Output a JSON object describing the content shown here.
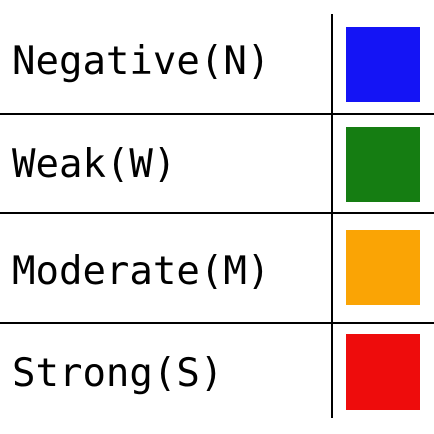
{
  "legend": {
    "items": [
      {
        "label": "Negative(N)",
        "color": "#1414f5"
      },
      {
        "label": "Weak(W)",
        "color": "#157d12"
      },
      {
        "label": "Moderate(M)",
        "color": "#faa405"
      },
      {
        "label": "Strong(S)",
        "color": "#ee0c0c"
      }
    ]
  }
}
